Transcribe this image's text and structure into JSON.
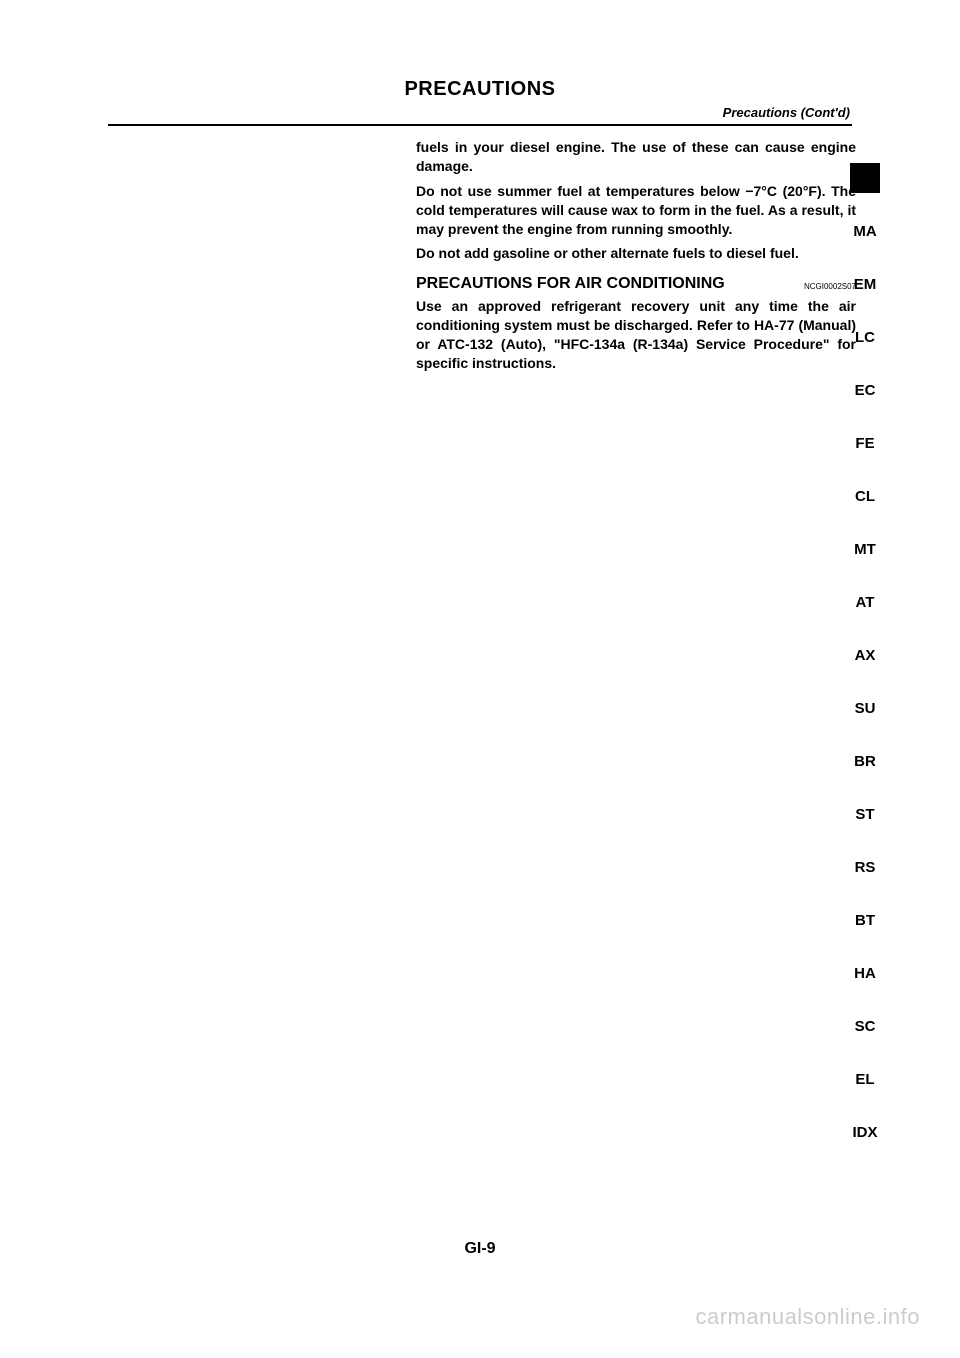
{
  "header": {
    "title": "PRECAUTIONS",
    "subtitle": "Precautions (Cont'd)"
  },
  "body": {
    "p1": "fuels in your diesel engine. The use of these can cause engine damage.",
    "p2": "Do not use summer fuel at temperatures below −7°C (20°F). The cold temperatures will cause wax to form in the fuel. As a result, it may prevent the engine from running smoothly.",
    "p3": "Do not add gasoline or other alternate fuels to diesel fuel.",
    "section_title": "PRECAUTIONS FOR AIR CONDITIONING",
    "section_code": "NCGI0002S07",
    "p4": "Use an approved refrigerant recovery unit any time the air conditioning system must be discharged. Refer to HA-77 (Manual) or ATC-132 (Auto), \"HFC-134a (R-134a) Service Procedure\" for specific instructions."
  },
  "tabs": [
    "MA",
    "EM",
    "LC",
    "EC",
    "FE",
    "CL",
    "MT",
    "AT",
    "AX",
    "SU",
    "BR",
    "ST",
    "RS",
    "BT",
    "HA",
    "SC",
    "EL",
    "IDX"
  ],
  "footer": {
    "page_num": "GI-9",
    "watermark": "carmanualsonline.info"
  },
  "colors": {
    "text": "#000000",
    "background": "#ffffff",
    "watermark": "#cccccc",
    "tab_active_bg": "#000000"
  }
}
